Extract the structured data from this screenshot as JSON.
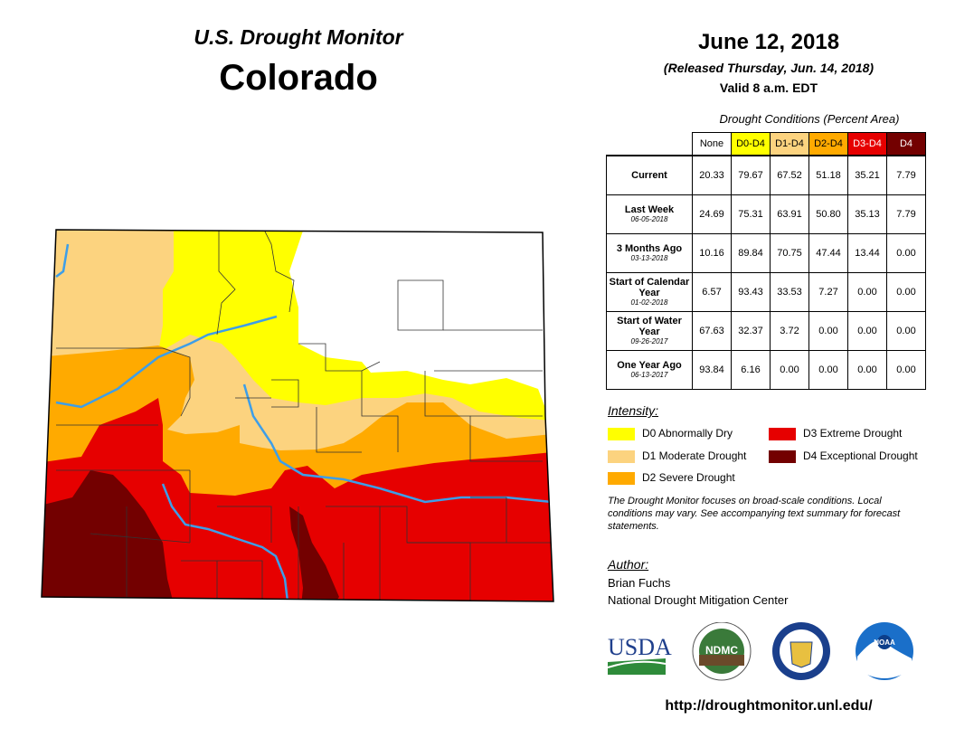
{
  "header": {
    "monitor_title": "U.S. Drought Monitor",
    "state": "Colorado",
    "date": "June 12, 2018",
    "released": "(Released Thursday, Jun. 14, 2018)",
    "valid": "Valid 8 a.m. EDT"
  },
  "conditions_table": {
    "caption": "Drought Conditions (Percent Area)",
    "columns": [
      "None",
      "D0-D4",
      "D1-D4",
      "D2-D4",
      "D3-D4",
      "D4"
    ],
    "column_colors": [
      "#ffffff",
      "#ffff00",
      "#fcd37f",
      "#ffaa00",
      "#e60000",
      "#730000"
    ],
    "rows": [
      {
        "label": "Current",
        "date": "",
        "values": [
          "20.33",
          "79.67",
          "67.52",
          "51.18",
          "35.21",
          "7.79"
        ]
      },
      {
        "label": "Last Week",
        "date": "06-05-2018",
        "values": [
          "24.69",
          "75.31",
          "63.91",
          "50.80",
          "35.13",
          "7.79"
        ]
      },
      {
        "label": "3 Months Ago",
        "date": "03-13-2018",
        "values": [
          "10.16",
          "89.84",
          "70.75",
          "47.44",
          "13.44",
          "0.00"
        ]
      },
      {
        "label": "Start of Calendar Year",
        "date": "01-02-2018",
        "values": [
          "6.57",
          "93.43",
          "33.53",
          "7.27",
          "0.00",
          "0.00"
        ]
      },
      {
        "label": "Start of Water Year",
        "date": "09-26-2017",
        "values": [
          "67.63",
          "32.37",
          "3.72",
          "0.00",
          "0.00",
          "0.00"
        ]
      },
      {
        "label": "One Year Ago",
        "date": "06-13-2017",
        "values": [
          "93.84",
          "6.16",
          "0.00",
          "0.00",
          "0.00",
          "0.00"
        ]
      }
    ]
  },
  "legend": {
    "title": "Intensity:",
    "items": [
      {
        "label": "D0 Abnormally Dry",
        "color": "#ffff00"
      },
      {
        "label": "D1 Moderate Drought",
        "color": "#fcd37f"
      },
      {
        "label": "D2 Severe Drought",
        "color": "#ffaa00"
      },
      {
        "label": "D3 Extreme Drought",
        "color": "#e60000"
      },
      {
        "label": "D4 Exceptional Drought",
        "color": "#730000"
      }
    ]
  },
  "note": "The Drought Monitor focuses on broad-scale conditions. Local conditions may vary. See accompanying text summary for forecast statements.",
  "author": {
    "title": "Author:",
    "name": "Brian Fuchs",
    "org": "National Drought Mitigation Center"
  },
  "logos": {
    "usda": "USDA",
    "ndmc": "NDMC",
    "noaa": "NOAA"
  },
  "url": "http://droughtmonitor.unl.edu/",
  "map": {
    "colors": {
      "none": "#ffffff",
      "d0": "#ffff00",
      "d1": "#fcd37f",
      "d2": "#ffaa00",
      "d3": "#e60000",
      "d4": "#730000",
      "river": "#3d9ee8"
    }
  }
}
